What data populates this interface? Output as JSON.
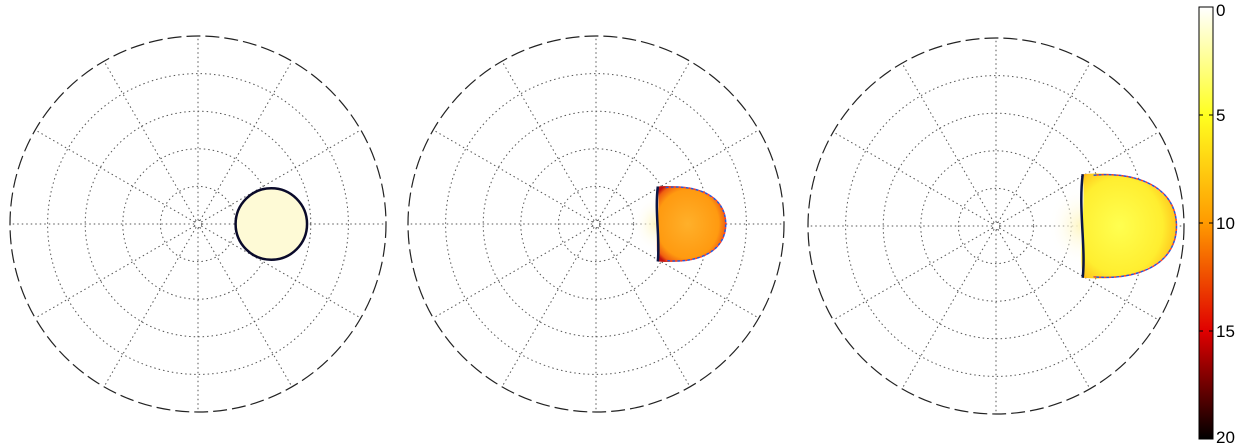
{
  "chart_data": [
    {
      "type": "heatmap",
      "projection": "polar",
      "grid": true,
      "title": "",
      "colormap": "hot-reversed",
      "region": {
        "shape": "circle",
        "center_r": 0.39,
        "radius": 0.19,
        "fill_value": 1.2
      }
    },
    {
      "type": "heatmap",
      "projection": "polar",
      "grid": true,
      "title": "",
      "colormap": "hot-reversed",
      "region": {
        "shape": "blob",
        "center_r": 0.48,
        "radius": 0.21,
        "fill_value": 8.5,
        "edge_value": 14,
        "tail_value": 1.5
      }
    },
    {
      "type": "heatmap",
      "projection": "polar",
      "grid": true,
      "title": "",
      "colormap": "hot-reversed",
      "region": {
        "shape": "blob",
        "center_r": 0.67,
        "radius": 0.29,
        "fill_value": 4.5,
        "edge_value": 12,
        "tail_value": 1.5
      }
    }
  ],
  "colorbar": {
    "min": 0,
    "max": 20,
    "ticks": [
      "0",
      "5",
      "10",
      "15",
      "20"
    ],
    "tick_values": [
      0,
      5,
      10,
      15,
      20
    ],
    "colors": [
      "#ffffff",
      "#ffff00",
      "#ff9900",
      "#ff0000",
      "#000000"
    ]
  }
}
